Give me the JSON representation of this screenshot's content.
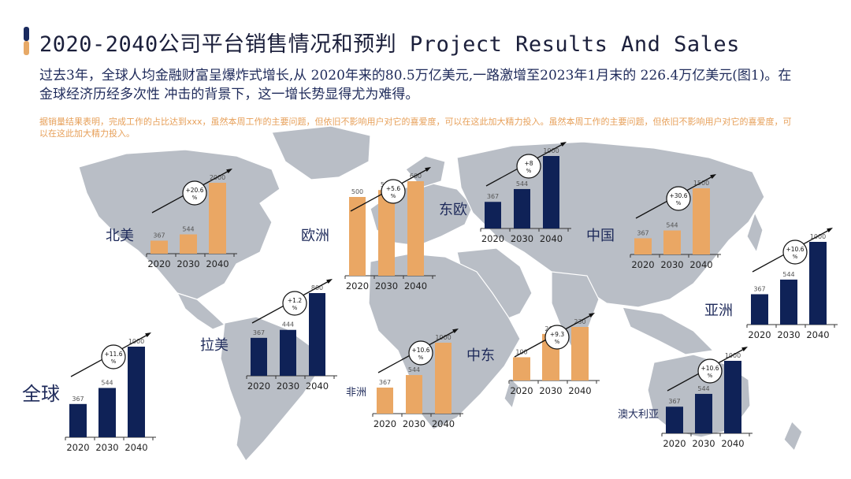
{
  "header": {
    "title": "2020-2040公司平台销售情况和预判 Project Results And Sales",
    "intro": "过去3年，全球人均金融财富呈爆炸式增长,从 2020年来的80.5万亿美元,一路激增至2023年1月末的 226.4万亿美元(图1)。在金球经济历经多次性 冲击的背景下，这一增长势显得尤为难得。",
    "note": "据销量结果表明，完成工作的占比达到xxx，虽然本周工作的主要问题，但依旧不影响用户对它的喜爱度，可以在这此加大精力投入。虽然本周工作的主要问题，但依旧不影响用户对它的喜爱度，可以在这此加大精力投入。"
  },
  "colors": {
    "navy": "#0f2257",
    "orange": "#eaa764",
    "map": "#b9bec6",
    "text": "#1e2a5a"
  },
  "chart_data": [
    {
      "type": "bar",
      "title": "全球",
      "categories": [
        "2020",
        "2030",
        "2040"
      ],
      "values": [
        367,
        544,
        1000
      ],
      "value_labels": [
        "367",
        "544",
        "1000"
      ],
      "color": "navy",
      "growth": "+11.6%"
    },
    {
      "type": "bar",
      "title": "北美",
      "categories": [
        "2020",
        "2030",
        "2040"
      ],
      "values": [
        367,
        544,
        2000
      ],
      "value_labels": [
        "367",
        "544",
        "2000"
      ],
      "color": "orange",
      "growth": "+20.6%"
    },
    {
      "type": "bar",
      "title": "拉美",
      "categories": [
        "2020",
        "2030",
        "2040"
      ],
      "values": [
        367,
        444,
        800
      ],
      "value_labels": [
        "367",
        "444",
        "800"
      ],
      "color": "navy",
      "growth": "+1.2%"
    },
    {
      "type": "bar",
      "title": "欧洲",
      "categories": [
        "2020",
        "2030",
        "2040"
      ],
      "values": [
        500,
        544,
        600
      ],
      "value_labels": [
        "500",
        "544",
        "600"
      ],
      "color": "orange",
      "growth": "+5.6%"
    },
    {
      "type": "bar",
      "title": "东欧",
      "categories": [
        "2020",
        "2030",
        "2040"
      ],
      "values": [
        367,
        544,
        1000
      ],
      "value_labels": [
        "367",
        "544",
        "1000"
      ],
      "color": "navy",
      "growth": "+8%"
    },
    {
      "type": "bar",
      "title": "非洲",
      "categories": [
        "2020",
        "2030",
        "2040"
      ],
      "values": [
        367,
        544,
        1000
      ],
      "value_labels": [
        "367",
        "544",
        "1000"
      ],
      "color": "orange",
      "growth": "+10.6%"
    },
    {
      "type": "bar",
      "title": "中东",
      "categories": [
        "2020",
        "2030",
        "2040"
      ],
      "values": [
        100,
        200,
        230
      ],
      "value_labels": [
        "100",
        "200",
        "230"
      ],
      "color": "orange",
      "growth": "+9.3%"
    },
    {
      "type": "bar",
      "title": "中国",
      "categories": [
        "2020",
        "2030",
        "2040"
      ],
      "values": [
        367,
        544,
        1500
      ],
      "value_labels": [
        "367",
        "544",
        "1500"
      ],
      "color": "orange",
      "growth": "+30.6%"
    },
    {
      "type": "bar",
      "title": "亚洲",
      "categories": [
        "2020",
        "2030",
        "2040"
      ],
      "values": [
        367,
        544,
        1000
      ],
      "value_labels": [
        "367",
        "544",
        "1000"
      ],
      "color": "navy",
      "growth": "+10.6%"
    },
    {
      "type": "bar",
      "title": "澳大利亚",
      "categories": [
        "2020",
        "2030",
        "2040"
      ],
      "values": [
        367,
        544,
        1000
      ],
      "value_labels": [
        "367",
        "544",
        "1000"
      ],
      "color": "navy",
      "growth": "+10.6%"
    }
  ]
}
